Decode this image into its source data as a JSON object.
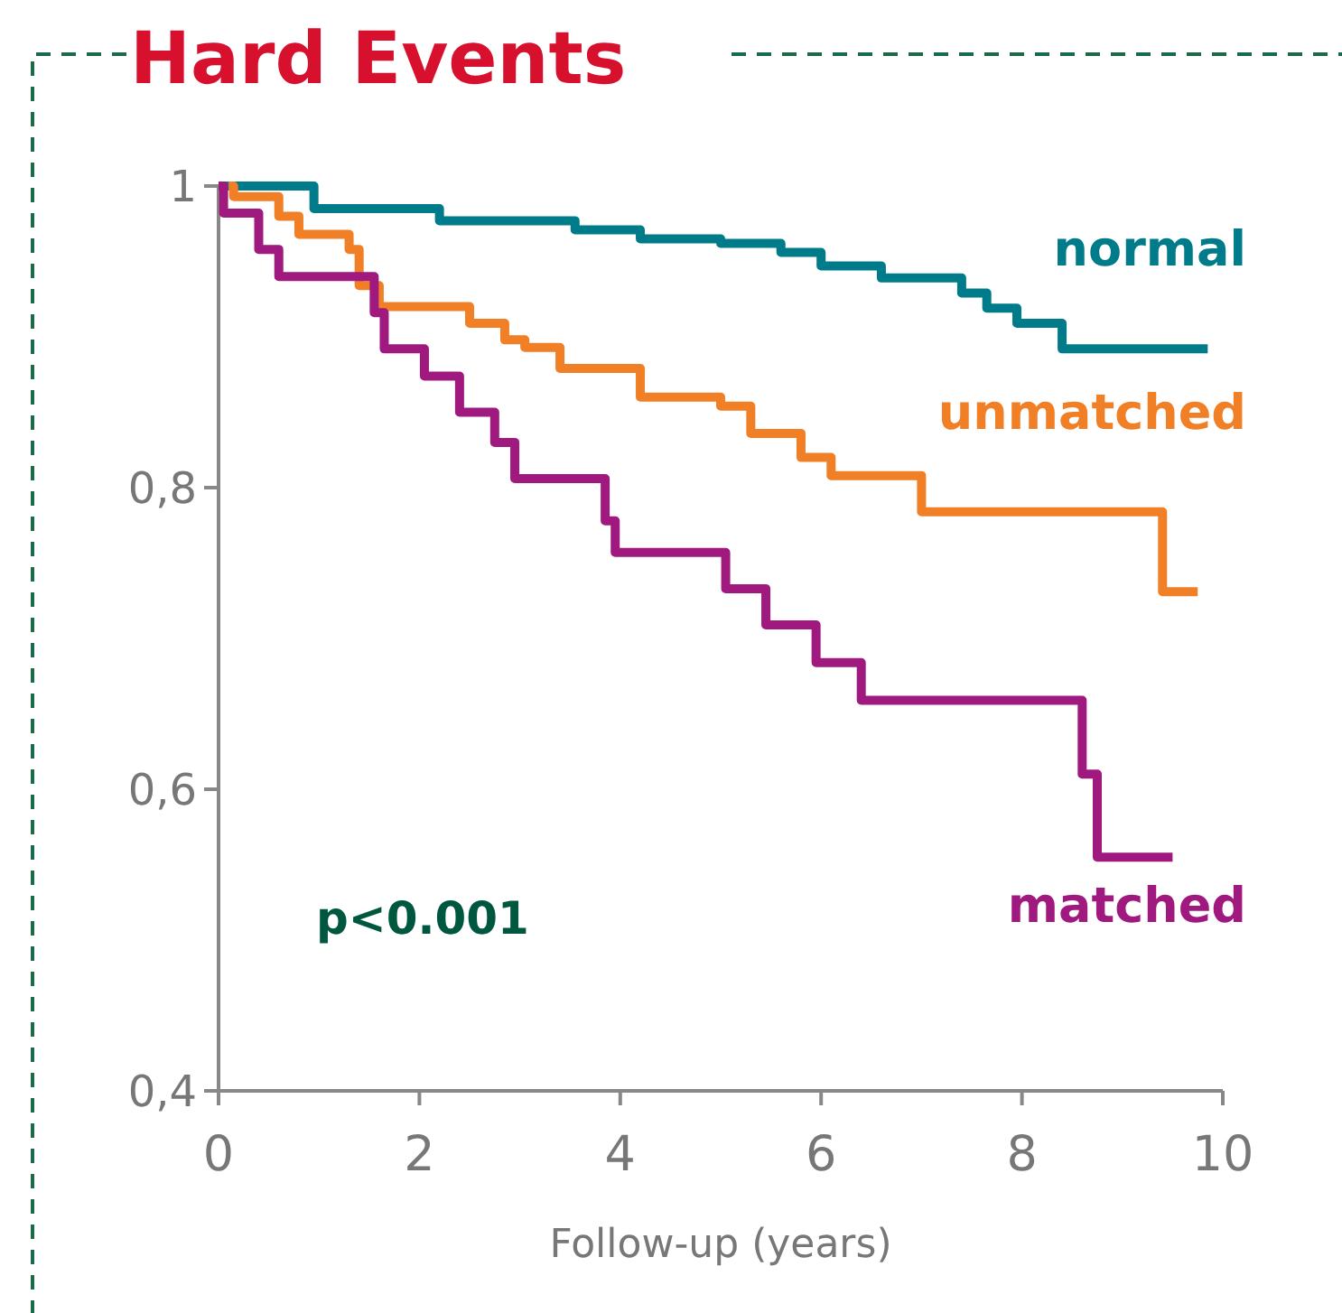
{
  "chart_data": {
    "type": "step",
    "title": "Hard Events",
    "xlabel": "Follow-up (years)",
    "xlim": [
      0,
      10
    ],
    "xticks": [
      0,
      2,
      4,
      6,
      8,
      10
    ],
    "ylim": [
      0.4,
      1
    ],
    "yticks": [
      1,
      {
        "value": 0.8,
        "label": "0,8"
      },
      {
        "value": 0.6,
        "label": "0,6"
      },
      {
        "value": 0.4,
        "label": "0,4"
      }
    ],
    "grid": false,
    "marker": "none",
    "line_style": "solid",
    "annotations": [
      "p<0.001"
    ],
    "series": [
      {
        "name": "normal",
        "color": "#007b8a",
        "x": [
          0,
          0.95,
          2.2,
          3.55,
          4.2,
          5.0,
          5.6,
          6.0,
          6.6,
          7.4,
          7.65,
          7.95,
          8.4,
          9.85
        ],
        "values": [
          1,
          0.985,
          0.977,
          0.971,
          0.965,
          0.962,
          0.956,
          0.947,
          0.939,
          0.929,
          0.919,
          0.909,
          0.892,
          0.892
        ]
      },
      {
        "name": "unmatched",
        "color": "#f07f26",
        "x": [
          0.1,
          0.15,
          0.6,
          0.8,
          1.3,
          1.4,
          1.6,
          2.5,
          2.85,
          3.05,
          3.4,
          4.2,
          5.0,
          5.3,
          5.8,
          6.1,
          7.0,
          9.4,
          9.75
        ],
        "values": [
          1,
          0.993,
          0.98,
          0.968,
          0.958,
          0.934,
          0.92,
          0.909,
          0.898,
          0.893,
          0.879,
          0.86,
          0.854,
          0.836,
          0.82,
          0.808,
          0.784,
          0.731,
          0.731
        ]
      },
      {
        "name": "matched",
        "color": "#a0197f",
        "x": [
          0,
          0.05,
          0.4,
          0.6,
          1.55,
          1.65,
          2.05,
          2.4,
          2.75,
          2.95,
          3.85,
          3.95,
          5.05,
          5.45,
          5.95,
          6.4,
          8.6,
          8.75,
          9.5
        ],
        "values": [
          1,
          0.982,
          0.958,
          0.94,
          0.916,
          0.892,
          0.874,
          0.85,
          0.83,
          0.806,
          0.778,
          0.757,
          0.733,
          0.709,
          0.684,
          0.659,
          0.61,
          0.555,
          0.555
        ]
      }
    ]
  }
}
